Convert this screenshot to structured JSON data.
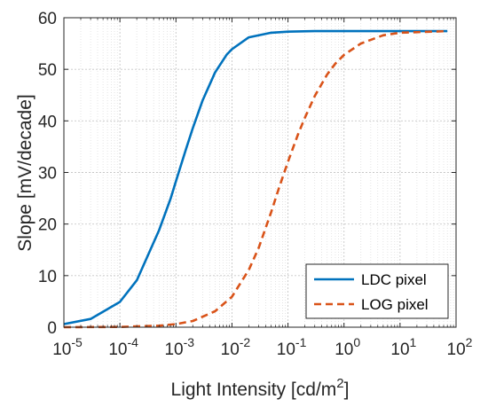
{
  "chart_data": {
    "type": "line",
    "xscale": "log",
    "xlim": [
      1e-05,
      100
    ],
    "ylim": [
      0,
      60
    ],
    "grid": true,
    "minor_grid": true,
    "legend_position": "bottom-right",
    "xlabel_base": "Light Intensity [cd/m",
    "xlabel_sup": "2",
    "xlabel_end": "]",
    "ylabel": "Slope [mV/decade]",
    "x_ticks": [
      {
        "value": 1e-05,
        "base": "10",
        "exp": "-5"
      },
      {
        "value": 0.0001,
        "base": "10",
        "exp": "-4"
      },
      {
        "value": 0.001,
        "base": "10",
        "exp": "-3"
      },
      {
        "value": 0.01,
        "base": "10",
        "exp": "-2"
      },
      {
        "value": 0.1,
        "base": "10",
        "exp": "-1"
      },
      {
        "value": 1,
        "base": "10",
        "exp": "0"
      },
      {
        "value": 10,
        "base": "10",
        "exp": "1"
      },
      {
        "value": 100,
        "base": "10",
        "exp": "2"
      }
    ],
    "y_ticks": [
      0,
      10,
      20,
      30,
      40,
      50,
      60
    ],
    "series": [
      {
        "name": "LDC pixel",
        "color": "#0072BD",
        "dash": "solid",
        "x": [
          1e-05,
          3e-05,
          0.0001,
          0.0002,
          0.0005,
          0.0008,
          0.001,
          0.0015,
          0.002,
          0.003,
          0.005,
          0.008,
          0.01,
          0.02,
          0.05,
          0.1,
          0.3,
          1,
          10,
          70
        ],
        "y": [
          0.6,
          1.6,
          4.9,
          9.1,
          18.8,
          24.9,
          28.3,
          34.4,
          38.6,
          44.0,
          49.4,
          52.8,
          53.9,
          56.2,
          57.1,
          57.3,
          57.4,
          57.4,
          57.4,
          57.4
        ]
      },
      {
        "name": "LOG pixel",
        "color": "#D95319",
        "dash": "dashed",
        "x": [
          1e-05,
          0.0001,
          0.0005,
          0.001,
          0.002,
          0.005,
          0.01,
          0.02,
          0.03,
          0.05,
          0.07,
          0.1,
          0.15,
          0.2,
          0.3,
          0.5,
          0.7,
          1,
          2,
          5,
          10,
          70
        ],
        "y": [
          0.0,
          0.06,
          0.3,
          0.6,
          1.2,
          3.1,
          5.9,
          11.1,
          15.4,
          22.3,
          27.2,
          32.1,
          37.3,
          40.6,
          44.8,
          49.0,
          51.1,
          52.8,
          55.0,
          56.6,
          57.1,
          57.4
        ]
      }
    ]
  }
}
